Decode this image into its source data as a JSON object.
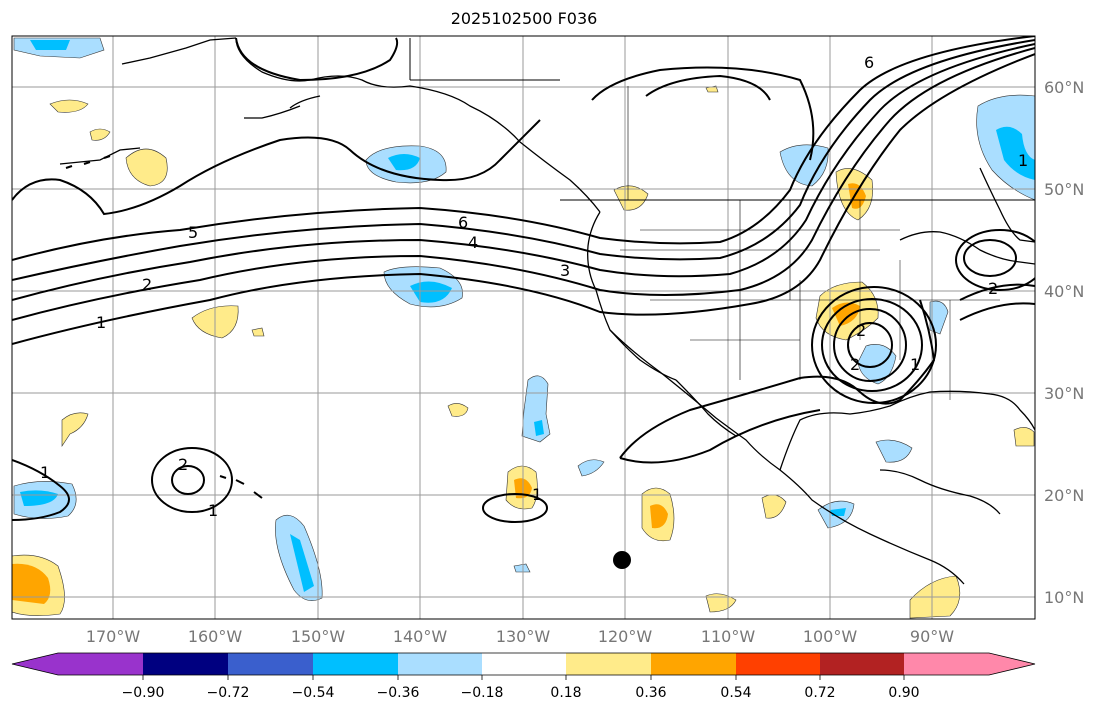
{
  "title": "2025102500 F036",
  "map": {
    "lon_ticks": [
      "170°W",
      "160°W",
      "150°W",
      "140°W",
      "130°W",
      "120°W",
      "110°W",
      "100°W",
      "90°W"
    ],
    "lat_ticks": [
      "60°N",
      "50°N",
      "40°N",
      "30°N",
      "20°N",
      "10°N"
    ],
    "contour_labels": [
      "5",
      "6",
      "4",
      "3",
      "2",
      "1",
      "2",
      "1",
      "1",
      "2",
      "1",
      "2",
      "1",
      "6",
      "2",
      "1"
    ],
    "colors": {
      "land": "#000000",
      "grid": "#9a9a9a",
      "tick_text": "#777777"
    }
  },
  "colorbar": {
    "tick_labels": [
      "−0.90",
      "−0.72",
      "−0.54",
      "−0.36",
      "−0.18",
      "0.18",
      "0.36",
      "0.54",
      "0.72",
      "0.90"
    ],
    "colors": [
      "#9933cc",
      "#000080",
      "#3a5fcd",
      "#00bfff",
      "#aadeff",
      "#ffffff",
      "#ffeb8a",
      "#ffa500",
      "#ff4000",
      "#b22222",
      "#ff88aa"
    ]
  }
}
